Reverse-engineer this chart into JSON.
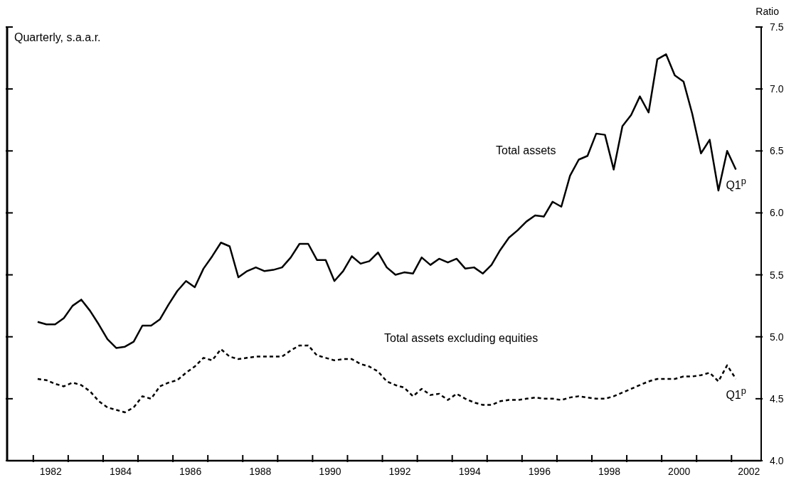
{
  "chart_data": {
    "type": "line",
    "ylabel": "Ratio",
    "annotations": [
      "Quarterly, s.a.a.r.",
      {
        "text": "Q1$^{p}$",
        "x": 2002.125,
        "y": 6.35
      },
      {
        "text": "Q1$^{p}$",
        "x": 2002.125,
        "y": 4.66
      }
    ],
    "x": [
      1982.125,
      1982.375,
      1982.625,
      1982.875,
      1983.125,
      1983.375,
      1983.625,
      1983.875,
      1984.125,
      1984.375,
      1984.625,
      1984.875,
      1985.125,
      1985.375,
      1985.625,
      1985.875,
      1986.125,
      1986.375,
      1986.625,
      1986.875,
      1987.125,
      1987.375,
      1987.625,
      1987.875,
      1988.125,
      1988.375,
      1988.625,
      1988.875,
      1989.125,
      1989.375,
      1989.625,
      1989.875,
      1990.125,
      1990.375,
      1990.625,
      1990.875,
      1991.125,
      1991.375,
      1991.625,
      1991.875,
      1992.125,
      1992.375,
      1992.625,
      1992.875,
      1993.125,
      1993.375,
      1993.625,
      1993.875,
      1994.125,
      1994.375,
      1994.625,
      1994.875,
      1995.125,
      1995.375,
      1995.625,
      1995.875,
      1996.125,
      1996.375,
      1996.625,
      1996.875,
      1997.125,
      1997.375,
      1997.625,
      1997.875,
      1998.125,
      1998.375,
      1998.625,
      1998.875,
      1999.125,
      1999.375,
      1999.625,
      1999.875,
      2000.125,
      2000.375,
      2000.625,
      2000.875,
      2001.125,
      2001.375,
      2001.625,
      2001.875,
      2002.125
    ],
    "series": [
      {
        "name": "Total assets",
        "color": "#000000",
        "line_style": "solid",
        "values": [
          5.12,
          5.1,
          5.1,
          5.15,
          5.25,
          5.3,
          5.21,
          5.1,
          4.98,
          4.91,
          4.92,
          4.96,
          5.09,
          5.09,
          5.14,
          5.26,
          5.37,
          5.45,
          5.4,
          5.55,
          5.65,
          5.76,
          5.73,
          5.48,
          5.53,
          5.56,
          5.53,
          5.54,
          5.56,
          5.64,
          5.75,
          5.75,
          5.62,
          5.62,
          5.45,
          5.53,
          5.65,
          5.59,
          5.61,
          5.68,
          5.56,
          5.5,
          5.52,
          5.51,
          5.64,
          5.58,
          5.63,
          5.6,
          5.63,
          5.55,
          5.56,
          5.51,
          5.58,
          5.7,
          5.8,
          5.86,
          5.93,
          5.98,
          5.97,
          6.09,
          6.05,
          6.3,
          6.43,
          6.46,
          6.64,
          6.63,
          6.35,
          6.7,
          6.79,
          6.94,
          6.81,
          7.24,
          7.28,
          7.11,
          7.06,
          6.8,
          6.48,
          6.59,
          6.18,
          6.5,
          6.35
        ]
      },
      {
        "name": "Total assets excluding equities",
        "color": "#000000",
        "line_style": "dashed",
        "values": [
          4.66,
          4.65,
          4.62,
          4.6,
          4.63,
          4.61,
          4.56,
          4.48,
          4.43,
          4.41,
          4.39,
          4.43,
          4.52,
          4.5,
          4.6,
          4.63,
          4.65,
          4.71,
          4.76,
          4.83,
          4.81,
          4.9,
          4.84,
          4.82,
          4.83,
          4.84,
          4.84,
          4.84,
          4.84,
          4.89,
          4.93,
          4.93,
          4.85,
          4.83,
          4.81,
          4.82,
          4.82,
          4.78,
          4.76,
          4.72,
          4.64,
          4.61,
          4.59,
          4.52,
          4.58,
          4.53,
          4.54,
          4.49,
          4.54,
          4.5,
          4.47,
          4.45,
          4.45,
          4.48,
          4.49,
          4.49,
          4.5,
          4.51,
          4.5,
          4.5,
          4.49,
          4.51,
          4.52,
          4.51,
          4.5,
          4.5,
          4.52,
          4.55,
          4.58,
          4.61,
          4.64,
          4.66,
          4.66,
          4.66,
          4.68,
          4.68,
          4.69,
          4.71,
          4.64,
          4.77,
          4.66
        ]
      }
    ],
    "marker": "none",
    "xlim": [
      1981.25,
      2002.85
    ],
    "xticks": [
      {
        "value": 1982,
        "label": null
      },
      {
        "value": 1983,
        "label": null
      },
      {
        "value": 1984,
        "label": null
      },
      {
        "value": 1985,
        "label": null
      },
      {
        "value": 1986,
        "label": null
      },
      {
        "value": 1987,
        "label": null
      },
      {
        "value": 1988,
        "label": null
      },
      {
        "value": 1989,
        "label": null
      },
      {
        "value": 1990,
        "label": null
      },
      {
        "value": 1991,
        "label": null
      },
      {
        "value": 1992,
        "label": null
      },
      {
        "value": 1993,
        "label": null
      },
      {
        "value": 1994,
        "label": null
      },
      {
        "value": 1995,
        "label": null
      },
      {
        "value": 1996,
        "label": null
      },
      {
        "value": 1997,
        "label": null
      },
      {
        "value": 1998,
        "label": null
      },
      {
        "value": 1999,
        "label": null
      },
      {
        "value": 2000,
        "label": null
      },
      {
        "value": 2001,
        "label": null
      },
      {
        "value": 2002,
        "label": null
      },
      {
        "value": 1982.5,
        "label": "1982"
      },
      {
        "value": 1984.5,
        "label": "1984"
      },
      {
        "value": 1986.5,
        "label": "1986"
      },
      {
        "value": 1988.5,
        "label": "1988"
      },
      {
        "value": 1990.5,
        "label": "1990"
      },
      {
        "value": 1992.5,
        "label": "1992"
      },
      {
        "value": 1994.5,
        "label": "1994"
      },
      {
        "value": 1996.5,
        "label": "1996"
      },
      {
        "value": 1998.5,
        "label": "1998"
      },
      {
        "value": 2000.5,
        "label": "2000"
      },
      {
        "value": 2002.5,
        "label": "2002"
      }
    ],
    "ylim": [
      4.0,
      7.5
    ],
    "yticks": [
      {
        "value": 4.0,
        "label": "4.0"
      },
      {
        "value": 4.5,
        "label": "4.5"
      },
      {
        "value": 5.0,
        "label": "5.0"
      },
      {
        "value": 5.5,
        "label": "5.5"
      },
      {
        "value": 6.0,
        "label": "6.0"
      },
      {
        "value": 6.5,
        "label": "6.5"
      },
      {
        "value": 7.0,
        "label": "7.0"
      },
      {
        "value": 7.5,
        "label": "7.5"
      }
    ]
  }
}
